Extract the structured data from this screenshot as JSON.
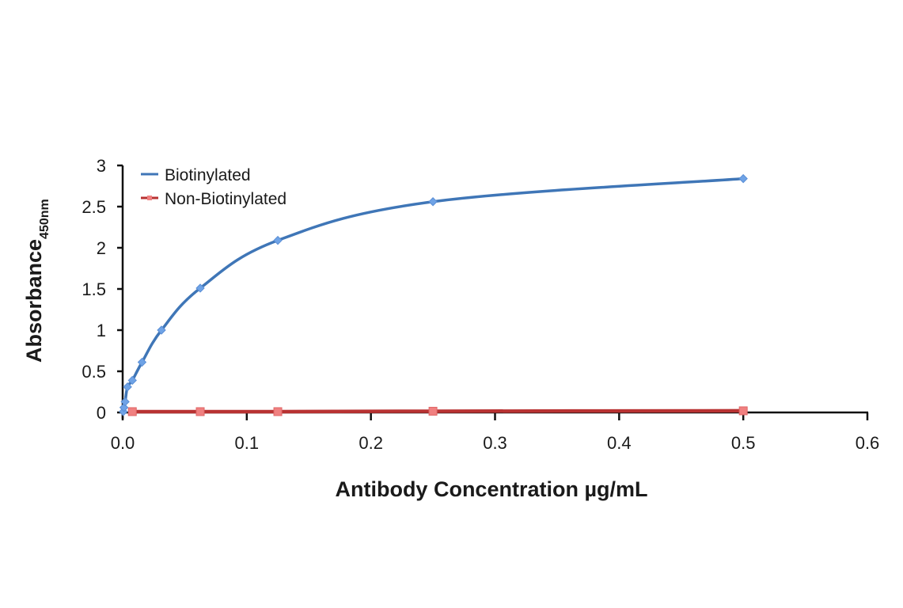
{
  "chart_data": {
    "type": "line",
    "title": "",
    "xlabel": "Antibody Concentration µg/mL",
    "ylabel": "Absorbance",
    "ylabel_subscript": "450nm",
    "xlim": [
      0,
      0.6
    ],
    "ylim": [
      0,
      3
    ],
    "x_ticks": [
      "0.0",
      "0.1",
      "0.2",
      "0.3",
      "0.4",
      "0.5",
      "0.6"
    ],
    "y_ticks": [
      "0",
      "0.5",
      "1",
      "1.5",
      "2",
      "2.5",
      "3"
    ],
    "grid": false,
    "legend_position": "top-left",
    "series": [
      {
        "name": "Biotinylated",
        "color": "#3f76b7",
        "marker_color": "#6fa3e6",
        "marker": "diamond",
        "x": [
          0.0005,
          0.001,
          0.002,
          0.0039,
          0.0078,
          0.0156,
          0.03125,
          0.0625,
          0.125,
          0.25,
          0.5
        ],
        "values": [
          0.01,
          0.06,
          0.13,
          0.31,
          0.39,
          0.61,
          1.0,
          1.51,
          2.09,
          2.56,
          2.84
        ]
      },
      {
        "name": "Non-Biotinylated",
        "color": "#b83232",
        "marker_color": "#f08080",
        "marker": "square",
        "x": [
          0.0078,
          0.0625,
          0.125,
          0.25,
          0.5
        ],
        "values": [
          0.01,
          0.01,
          0.01,
          0.015,
          0.02
        ]
      }
    ]
  }
}
